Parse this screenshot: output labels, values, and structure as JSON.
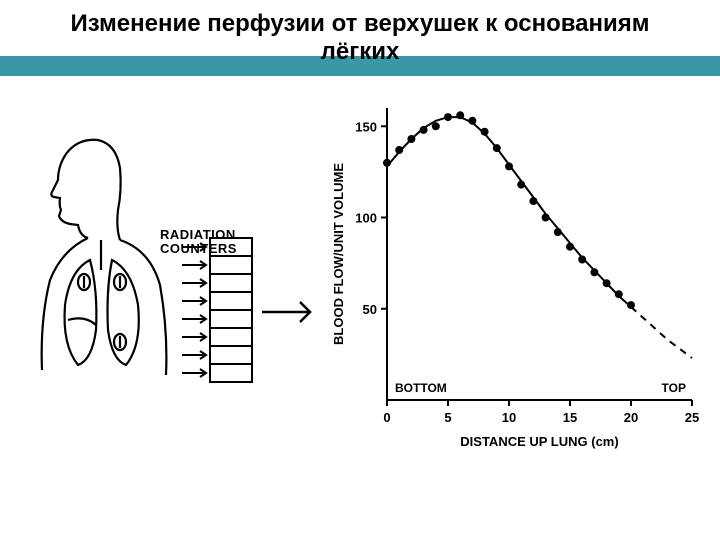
{
  "header": {
    "title_line1": "Изменение перфузии от верхушек к основаниям",
    "title_line2": "лёгких",
    "band_color": "#3a97a8",
    "title_fontsize": 24
  },
  "diagram": {
    "label": "RADIATION\nCOUNTERS",
    "label_fontsize": 13,
    "stroke_color": "#000000",
    "counter_rows": 8
  },
  "chart": {
    "type": "scatter-line",
    "title": "",
    "xlabel": "DISTANCE UP LUNG  (cm)",
    "ylabel": "BLOOD FLOW/UNIT VOLUME",
    "xlabel_bottom": "BOTTOM",
    "xlabel_top": "TOP",
    "label_fontsize": 13,
    "tick_fontsize": 13,
    "xlim": [
      0,
      25
    ],
    "ylim": [
      0,
      160
    ],
    "xticks": [
      0,
      5,
      10,
      15,
      20,
      25
    ],
    "yticks": [
      50,
      100,
      150
    ],
    "stroke_color": "#000000",
    "background_color": "#ffffff",
    "marker": "circle",
    "marker_size": 4,
    "line_width": 2,
    "data_x": [
      0,
      1,
      2,
      3,
      4,
      5,
      6,
      7,
      8,
      9,
      10,
      11,
      12,
      13,
      14,
      15,
      16,
      17,
      18,
      19,
      20
    ],
    "data_y": [
      130,
      137,
      143,
      148,
      150,
      155,
      156,
      153,
      147,
      138,
      128,
      118,
      109,
      100,
      92,
      84,
      77,
      70,
      64,
      58,
      52
    ],
    "curve_x": [
      0,
      1,
      2,
      3,
      4,
      5,
      6,
      7,
      8,
      9,
      10,
      11,
      12,
      13,
      14,
      15,
      16,
      17,
      18,
      19,
      20,
      21,
      22,
      23,
      24,
      25
    ],
    "curve_y": [
      128,
      136,
      143,
      149,
      153,
      155,
      155,
      152,
      146,
      138,
      129,
      120,
      111,
      102,
      94,
      86,
      78,
      71,
      64,
      57,
      51,
      45,
      39,
      33,
      28,
      23
    ],
    "dash_from_x": 20
  }
}
